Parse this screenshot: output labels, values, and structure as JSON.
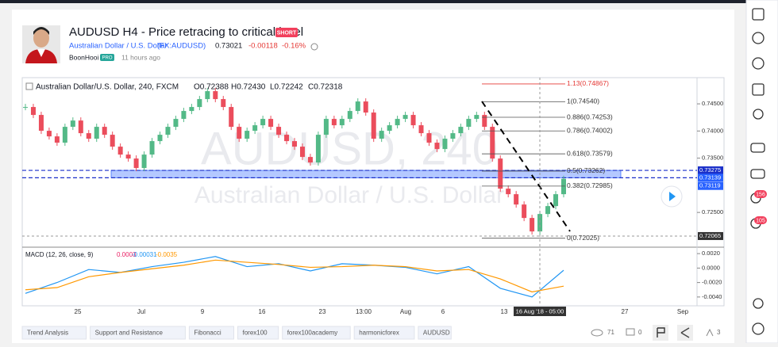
{
  "header": {
    "title": "AUDUSD H4 - Price retracing to critical level",
    "badge": "SHORT",
    "symbol_name": "Australian Dollar / U.S. Dollar",
    "symbol_code": "(FX:AUDUSD)",
    "price": "0.73021",
    "change": "-0.00118",
    "change_pct": "-0.16%",
    "author": "BoonHooi",
    "author_badge": "PRO",
    "time_ago": "11 hours ago"
  },
  "chart_data": {
    "type": "candlestick",
    "legend_name": "Australian Dollar/U.S. Dollar, 240, FXCM",
    "ohlc": [
      "O0.72388",
      "H0.72430",
      "L0.72242",
      "C0.72318"
    ],
    "watermark": [
      "AUDUSD, 240",
      "Australian Dollar / U.S. Dollar"
    ],
    "close": [
      0.74442,
      0.74296,
      0.74004,
      0.73901,
      0.73785,
      0.74077,
      0.74193,
      0.7396,
      0.73858,
      0.74077,
      0.73931,
      0.73712,
      0.73566,
      0.73493,
      0.73318,
      0.73566,
      0.73814,
      0.73931,
      0.74077,
      0.74223,
      0.74369,
      0.74442,
      0.74588,
      0.74734,
      0.74588,
      0.74442,
      0.74077,
      0.73858,
      0.74004,
      0.74106,
      0.74223,
      0.74077,
      0.73931,
      0.73814,
      0.73712,
      0.73522,
      0.7342,
      0.73931,
      0.74223,
      0.74106,
      0.74223,
      0.74369,
      0.74544,
      0.7434,
      0.73858,
      0.74004,
      0.74106,
      0.74223,
      0.74296,
      0.74106,
      0.7396,
      0.73785,
      0.73668,
      0.73858,
      0.7396,
      0.74077,
      0.74223,
      0.74296,
      0.74077,
      0.73493,
      0.72938,
      0.72836,
      0.72646,
      0.72398,
      0.7215,
      0.72471,
      0.72617,
      0.72836,
      0.73119
    ],
    "up_color": "#53b987",
    "down_color": "#eb4d5c",
    "ylim": [
      0.7186,
      0.7491
    ],
    "yticks": [
      {
        "value": 0.745,
        "label": "0.74500"
      },
      {
        "value": 0.74,
        "label": "0.74000"
      },
      {
        "value": 0.735,
        "label": "0.73500"
      },
      {
        "value": 0.725,
        "label": "0.72500"
      }
    ],
    "price_tags": [
      {
        "value": 0.73275,
        "label": "0.73275"
      },
      {
        "value": 0.73139,
        "label": "0.73139"
      },
      {
        "value": 0.73119,
        "label": "0.73119"
      },
      {
        "value": 0.72065,
        "label": "0.72065"
      }
    ],
    "fib_levels": [
      {
        "value": 0.74867,
        "label": "1.13(0.74867)"
      },
      {
        "value": 0.7454,
        "label": "1(0.74540)"
      },
      {
        "value": 0.74253,
        "label": "0.886(0.74253)"
      },
      {
        "value": 0.74002,
        "label": "0.786(0.74002)"
      },
      {
        "value": 0.73579,
        "label": "0.618(0.73579)"
      },
      {
        "value": 0.73262,
        "label": "0.5(0.73262)"
      },
      {
        "value": 0.72985,
        "label": "0.382(0.72985)"
      },
      {
        "value": 0.72025,
        "label": "0(0.72025)"
      }
    ],
    "x_labels": [
      "25",
      "Jul",
      "9",
      "16",
      "23",
      "13:00",
      "Aug",
      "6",
      "13",
      "27",
      "Sep"
    ],
    "crosshair_label": "16 Aug '18 - 05:00",
    "macd": {
      "title": "MACD (12, 26, close, 9)",
      "readouts": [
        "0.0003",
        "-0.00031",
        "-0.0035"
      ],
      "macd": [
        -0.0035,
        -0.002,
        -0.0002,
        -0.0006,
        0.0002,
        0.0008,
        0.0016,
        0.0002,
        0.0006,
        -0.0004,
        0.0006,
        0.0004,
        0.0001,
        -0.0008,
        0.0002,
        -0.0028,
        -0.004,
        -0.0003
      ],
      "signal": [
        -0.003,
        -0.0027,
        -0.0012,
        -0.0006,
        -0.0001,
        0.0004,
        0.0011,
        0.0008,
        0.0005,
        0.0001,
        0.0002,
        0.0004,
        0.0002,
        -0.0004,
        -0.0002,
        -0.0015,
        -0.0033,
        -0.0025
      ],
      "ylim": [
        -0.00511,
        0.00278
      ],
      "yticks": [
        {
          "value": 0.002,
          "label": "0.0020"
        },
        {
          "value": 0,
          "label": "0.0000"
        },
        {
          "value": -0.002,
          "label": "-0.0020"
        },
        {
          "value": -0.004,
          "label": "-0.0040"
        }
      ]
    }
  },
  "tags": [
    "Trend Analysis",
    "Support and Resistance",
    "Fibonacci",
    "forex100",
    "forex100academy",
    "harmonicforex",
    "AUDUSD"
  ],
  "stats": {
    "views": "71",
    "comments": "0",
    "likes": "3"
  },
  "sidebar": {
    "badges": [
      "156",
      "105"
    ]
  }
}
